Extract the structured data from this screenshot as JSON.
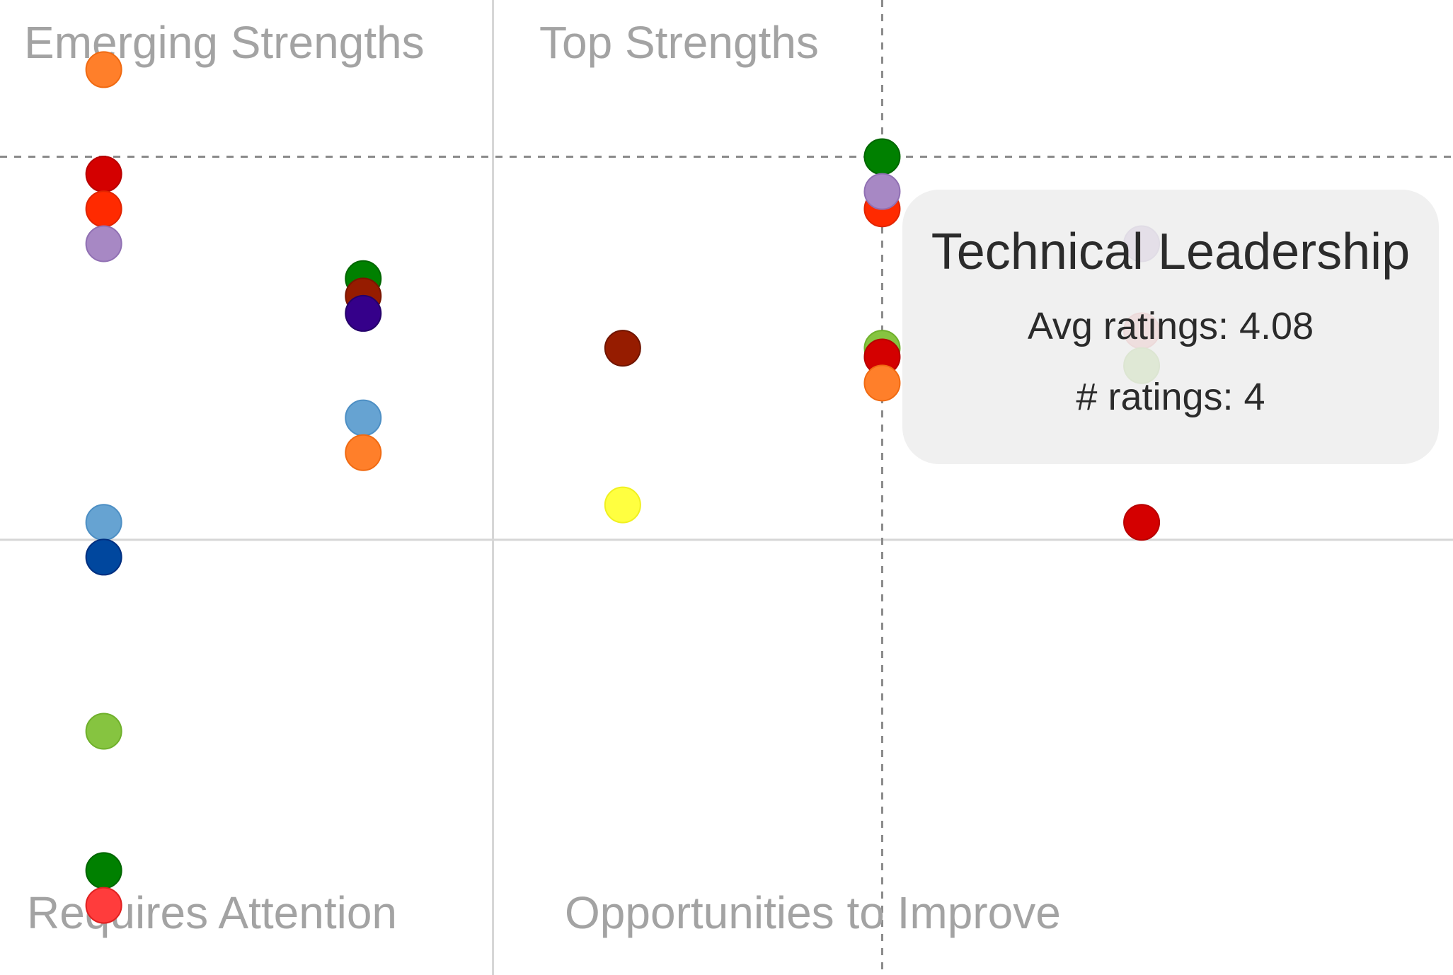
{
  "chart_data": {
    "type": "scatter",
    "title": "",
    "xlabel": "",
    "ylabel": "",
    "xlim": [
      0,
      5.6
    ],
    "ylim": [
      0,
      5.6
    ],
    "grid": false,
    "legend": "none",
    "dividers": {
      "x": 1.9,
      "y": 2.5
    },
    "reference_lines": {
      "x": 3.4,
      "y": 4.7
    },
    "quadrant_labels": {
      "top_left": "Emerging Strengths",
      "top_right": "Top Strengths",
      "bottom_left": "Requires Attention",
      "bottom_right": "Opportunities to Improve"
    },
    "points": [
      {
        "x": 0.4,
        "y": 5.2,
        "color": "#ff7f2a",
        "stroke": "#f06a12"
      },
      {
        "x": 0.4,
        "y": 4.6,
        "color": "#d40000",
        "stroke": "#b80000"
      },
      {
        "x": 0.4,
        "y": 4.4,
        "color": "#ff2a00",
        "stroke": "#e02400"
      },
      {
        "x": 0.4,
        "y": 4.2,
        "color": "#a788c4",
        "stroke": "#9070b3"
      },
      {
        "x": 0.4,
        "y": 2.6,
        "color": "#66a3d2",
        "stroke": "#4d8fc4"
      },
      {
        "x": 0.4,
        "y": 2.4,
        "color": "#00479e",
        "stroke": "#002f80"
      },
      {
        "x": 0.4,
        "y": 1.4,
        "color": "#86c440",
        "stroke": "#6fb02b"
      },
      {
        "x": 0.4,
        "y": 0.6,
        "color": "#008000",
        "stroke": "#006600"
      },
      {
        "x": 0.4,
        "y": 0.4,
        "color": "#ff3c3c",
        "stroke": "#e02020"
      },
      {
        "x": 1.4,
        "y": 4.0,
        "color": "#008000",
        "stroke": "#006600"
      },
      {
        "x": 1.4,
        "y": 3.9,
        "color": "#961c00",
        "stroke": "#7a1500"
      },
      {
        "x": 1.4,
        "y": 3.8,
        "color": "#35008a",
        "stroke": "#25006a"
      },
      {
        "x": 1.4,
        "y": 3.2,
        "color": "#66a3d2",
        "stroke": "#4d8fc4"
      },
      {
        "x": 1.4,
        "y": 3.0,
        "color": "#ff7f2a",
        "stroke": "#f06a12"
      },
      {
        "x": 2.4,
        "y": 3.6,
        "color": "#961c00",
        "stroke": "#6f1400"
      },
      {
        "x": 2.4,
        "y": 2.7,
        "color": "#ffff40",
        "stroke": "#f0f020"
      },
      {
        "x": 3.4,
        "y": 4.7,
        "color": "#008000",
        "stroke": "#006600"
      },
      {
        "x": 3.4,
        "y": 4.4,
        "color": "#ff2a00",
        "stroke": "#e02400"
      },
      {
        "x": 3.4,
        "y": 4.5,
        "color": "#a788c4",
        "stroke": "#9070b3"
      },
      {
        "x": 3.4,
        "y": 3.6,
        "color": "#86c440",
        "stroke": "#6fb02b"
      },
      {
        "x": 3.4,
        "y": 3.55,
        "color": "#d40000",
        "stroke": "#b80000"
      },
      {
        "x": 3.4,
        "y": 3.4,
        "color": "#ff7f2a",
        "stroke": "#f06a12"
      },
      {
        "x": 4.4,
        "y": 4.2,
        "color": "#a788c4",
        "stroke": "#9070b3"
      },
      {
        "x": 4.4,
        "y": 3.7,
        "color": "#f08080",
        "stroke": "#e06060"
      },
      {
        "x": 4.4,
        "y": 3.5,
        "color": "#86c440",
        "stroke": "#6fb02b"
      },
      {
        "x": 4.4,
        "y": 2.6,
        "color": "#d40000",
        "stroke": "#b80000"
      }
    ],
    "tooltip": {
      "title": "Technical Leadership",
      "avg": "Avg ratings: 4.08",
      "count": "# ratings: 4"
    }
  }
}
